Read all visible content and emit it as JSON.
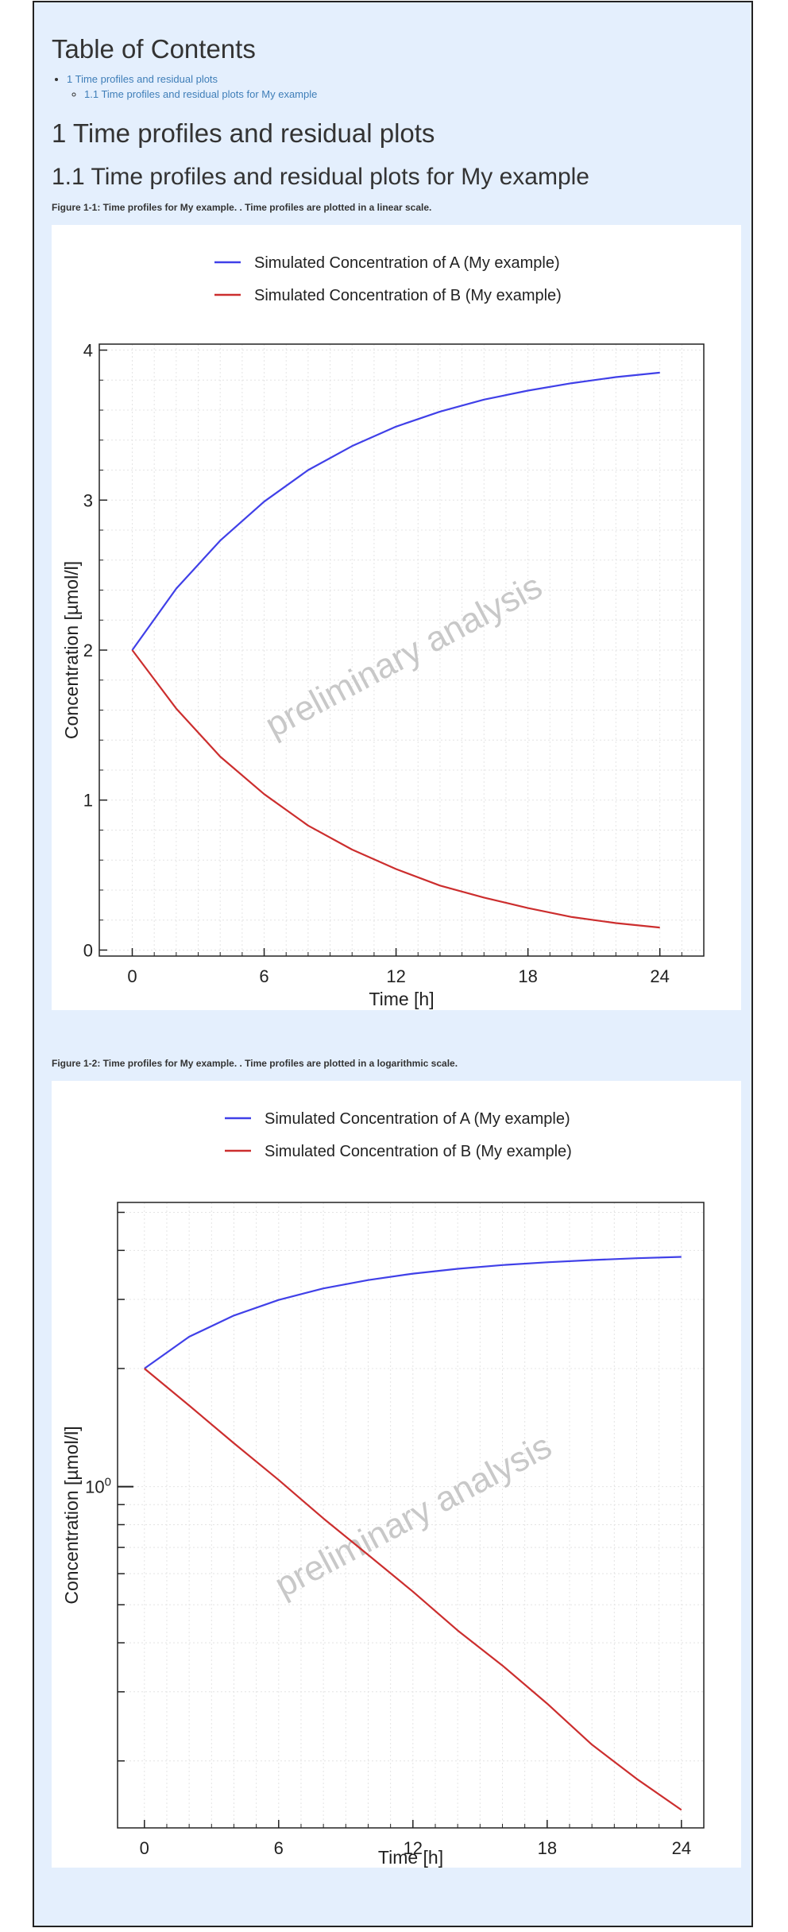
{
  "toc": {
    "title": "Table of Contents",
    "items": [
      {
        "label": "1 Time profiles and residual plots",
        "children": [
          {
            "label": "1.1 Time profiles and residual plots for My example"
          }
        ]
      }
    ]
  },
  "section": {
    "title": "1 Time profiles and residual plots"
  },
  "subsection": {
    "title": "1.1 Time profiles and residual plots for My example"
  },
  "figures": [
    {
      "caption": "Figure 1-1: Time profiles for My example. . Time profiles are plotted in a linear scale."
    },
    {
      "caption": "Figure 1-2: Time profiles for My example. . Time profiles are plotted in a logarithmic scale."
    }
  ],
  "watermark": "preliminary analysis",
  "chart_data": [
    {
      "type": "line",
      "title": "",
      "xlabel": "Time [h]",
      "ylabel": "Concentration [µmol/l]",
      "xlim": [
        -1.5,
        26
      ],
      "ylim": [
        -0.04,
        4.04
      ],
      "xticks": [
        0,
        6,
        12,
        18,
        24
      ],
      "xtick_labels": [
        "0",
        "6",
        "12",
        "18",
        "24"
      ],
      "yticks": [
        0,
        1,
        2,
        3,
        4
      ],
      "ytick_labels": [
        "0",
        "1",
        "2",
        "3",
        "4"
      ],
      "yscale": "linear",
      "grid": true,
      "legend_position": "top",
      "series": [
        {
          "name": "Simulated Concentration of A (My example)",
          "color": "#4040e8",
          "x": [
            0,
            2,
            4,
            6,
            8,
            10,
            12,
            14,
            16,
            18,
            20,
            22,
            24
          ],
          "y": [
            2.0,
            2.41,
            2.73,
            2.99,
            3.2,
            3.36,
            3.49,
            3.59,
            3.67,
            3.73,
            3.78,
            3.82,
            3.85
          ]
        },
        {
          "name": "Simulated Concentration of B (My example)",
          "color": "#cc2e2e",
          "x": [
            0,
            2,
            4,
            6,
            8,
            10,
            12,
            14,
            16,
            18,
            20,
            22,
            24
          ],
          "y": [
            2.0,
            1.61,
            1.29,
            1.04,
            0.83,
            0.67,
            0.54,
            0.43,
            0.35,
            0.28,
            0.22,
            0.18,
            0.15
          ]
        }
      ]
    },
    {
      "type": "line",
      "title": "",
      "xlabel": "Time [h]",
      "ylabel": "Concentration [µmol/l]",
      "xlim": [
        -1.2,
        25
      ],
      "ylim": [
        0.135,
        5.3
      ],
      "xticks": [
        0,
        6,
        12,
        18,
        24
      ],
      "xtick_labels": [
        "0",
        "6",
        "12",
        "18",
        "24"
      ],
      "yticks": [
        1
      ],
      "ytick_labels": [
        "10",
        "0"
      ],
      "yscale": "log",
      "grid": true,
      "legend_position": "top",
      "series": [
        {
          "name": "Simulated Concentration of A (My example)",
          "color": "#4040e8",
          "x": [
            0,
            2,
            4,
            6,
            8,
            10,
            12,
            14,
            16,
            18,
            20,
            22,
            24
          ],
          "y": [
            2.0,
            2.41,
            2.73,
            2.99,
            3.2,
            3.36,
            3.49,
            3.59,
            3.67,
            3.73,
            3.78,
            3.82,
            3.85
          ]
        },
        {
          "name": "Simulated Concentration of B (My example)",
          "color": "#cc2e2e",
          "x": [
            0,
            2,
            4,
            6,
            8,
            10,
            12,
            14,
            16,
            18,
            20,
            22,
            24
          ],
          "y": [
            2.0,
            1.61,
            1.29,
            1.04,
            0.83,
            0.67,
            0.54,
            0.43,
            0.35,
            0.28,
            0.22,
            0.18,
            0.15
          ]
        }
      ]
    }
  ]
}
